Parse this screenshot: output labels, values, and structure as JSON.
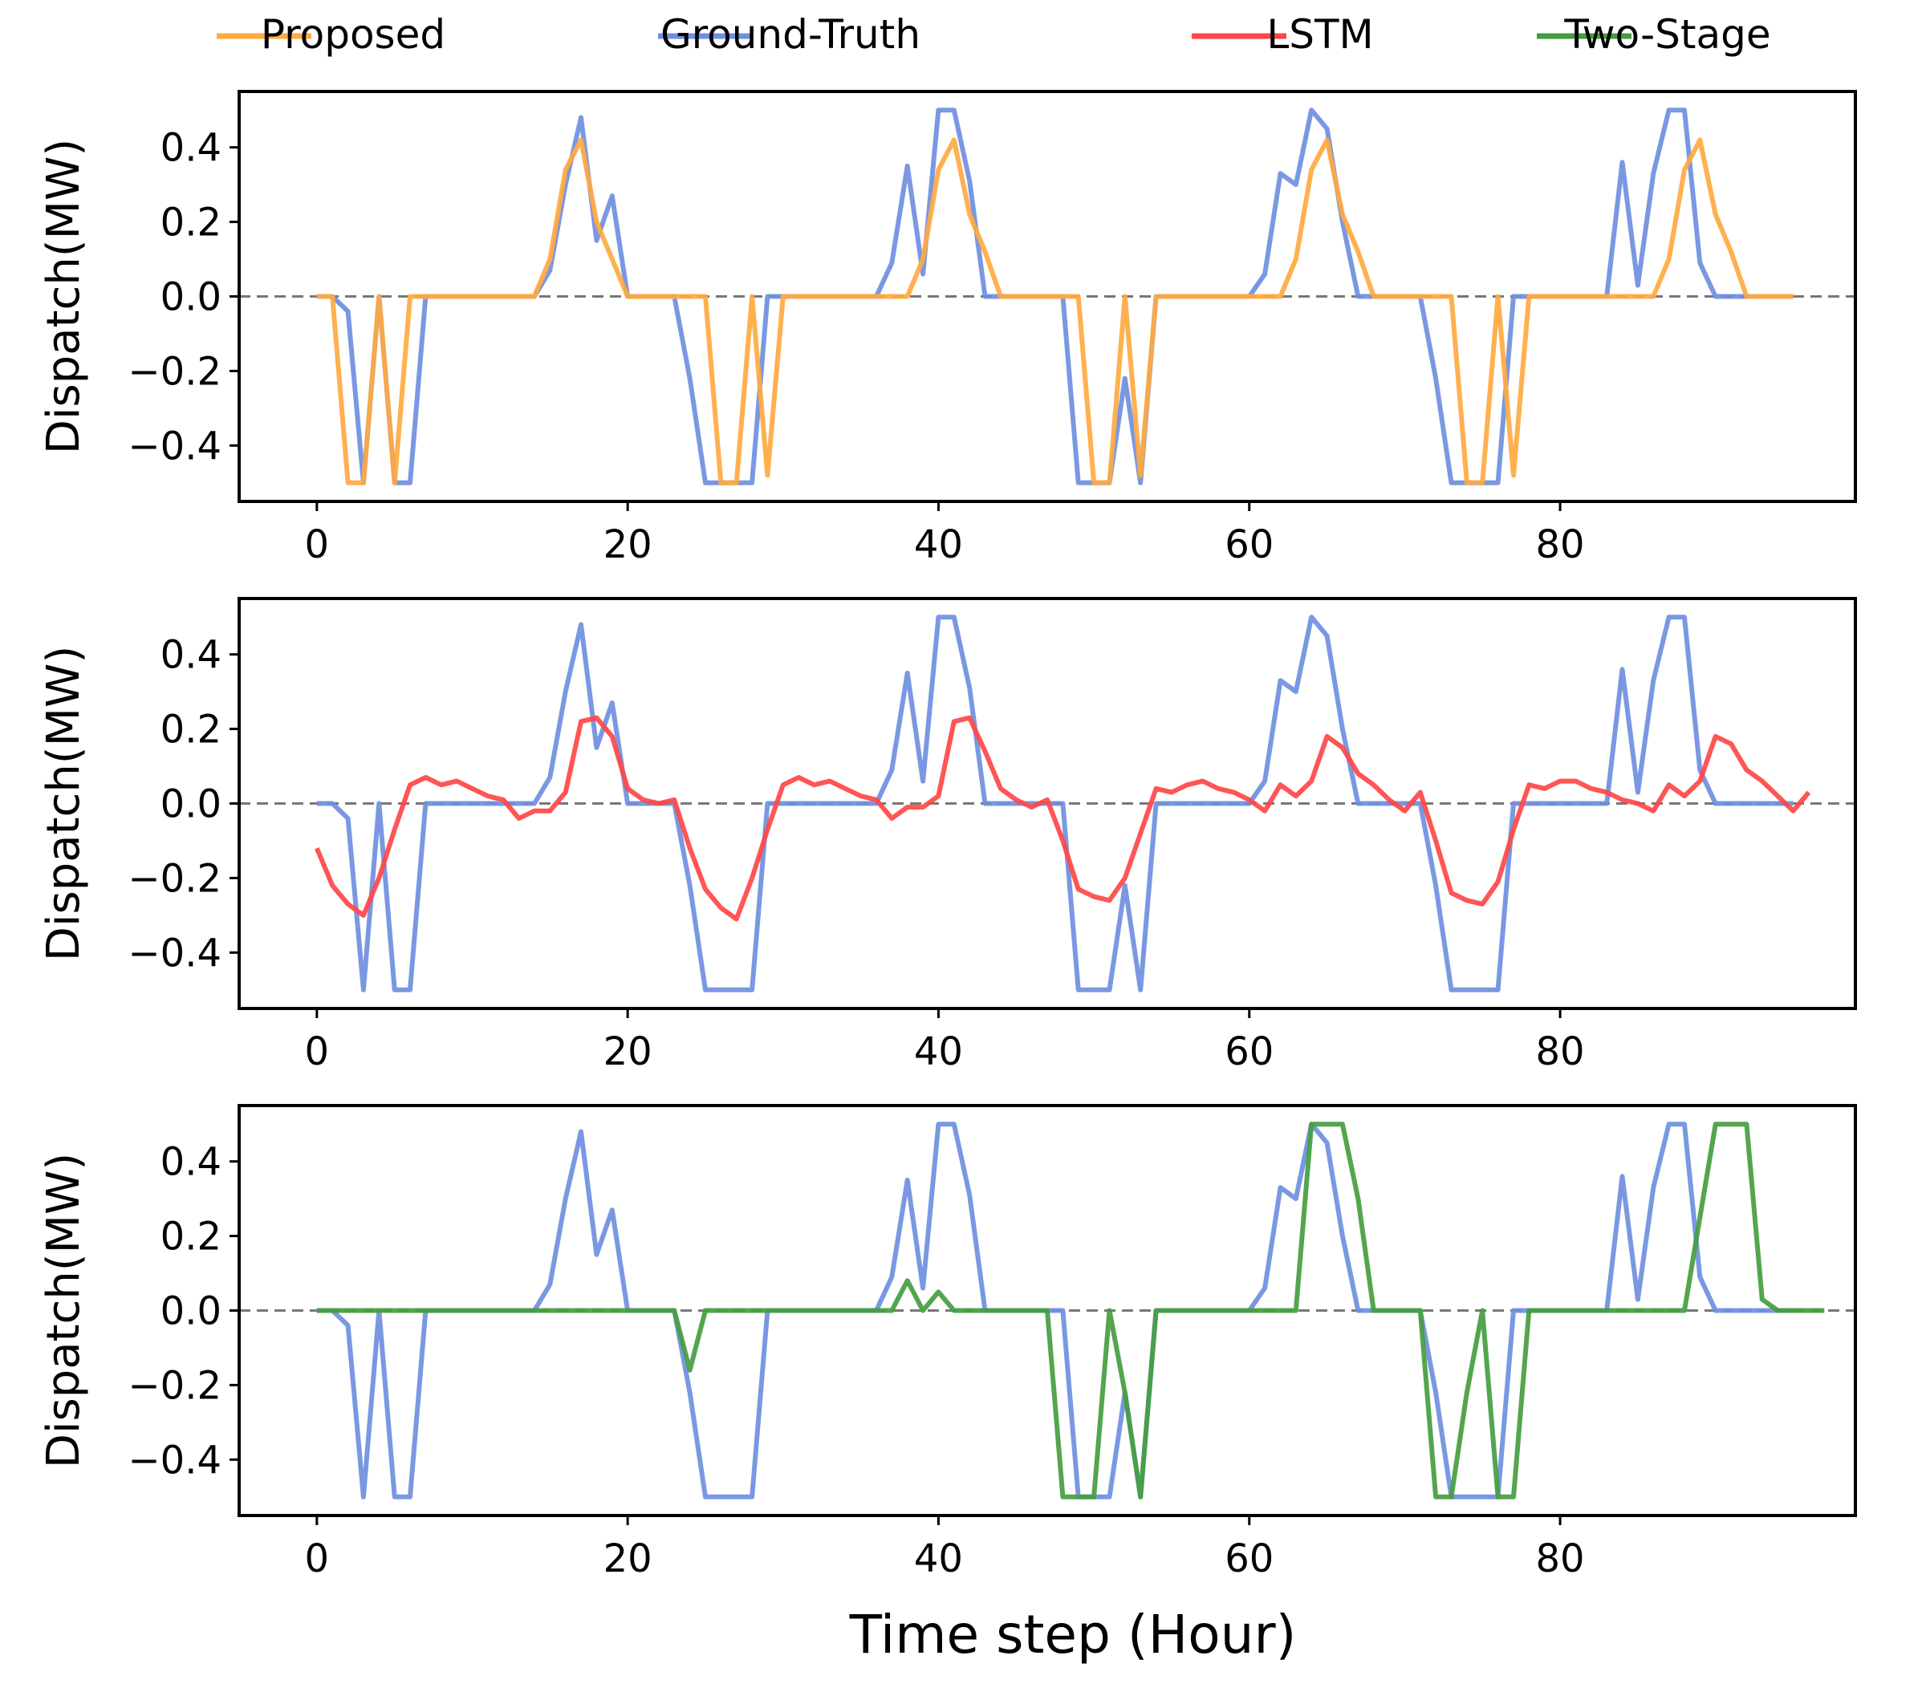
{
  "legend": [
    {
      "name": "Proposed",
      "color": "#FFA940"
    },
    {
      "name": "Ground-Truth",
      "color": "#6F8FE0"
    },
    {
      "name": "LSTM",
      "color": "#FF4646"
    },
    {
      "name": "Two-Stage",
      "color": "#449D3F"
    }
  ],
  "xlabel": "Time step (Hour)",
  "chart_data": [
    {
      "type": "line",
      "ylabel": "Dispatch(MW)",
      "xlim": [
        -5,
        99
      ],
      "ylim": [
        -0.55,
        0.55
      ],
      "xticks": [
        0,
        20,
        40,
        60,
        80
      ],
      "yticks": [
        -0.4,
        -0.2,
        0.0,
        0.2,
        0.4
      ],
      "ytick_labels": [
        "−0.4",
        "−0.2",
        "0.0",
        "0.2",
        "0.4"
      ],
      "reference_line": 0,
      "series": [
        {
          "name": "Ground-Truth",
          "color": "#6F8FE0",
          "x_start": 0,
          "values": [
            0,
            0,
            -0.04,
            -0.5,
            0,
            -0.5,
            -0.5,
            0,
            0,
            0,
            0,
            0,
            0,
            0,
            0,
            0.07,
            0.3,
            0.48,
            0.15,
            0.27,
            0,
            0,
            0,
            0,
            -0.22,
            -0.5,
            -0.5,
            -0.5,
            -0.5,
            0,
            0,
            0,
            0,
            0,
            0,
            0,
            0,
            0.09,
            0.35,
            0.06,
            0.5,
            0.5,
            0.31,
            0,
            0,
            0,
            0,
            0,
            0,
            -0.5,
            -0.5,
            -0.5,
            -0.22,
            -0.5,
            0,
            0,
            0,
            0,
            0,
            0,
            0,
            0.06,
            0.33,
            0.3,
            0.5,
            0.45,
            0.2,
            0,
            0,
            0,
            0,
            0,
            -0.22,
            -0.5,
            -0.5,
            -0.5,
            -0.5,
            0,
            0,
            0,
            0,
            0,
            0,
            0,
            0.36,
            0.03,
            0.33,
            0.5,
            0.5,
            0.09,
            0,
            0,
            0,
            0,
            0,
            0
          ]
        },
        {
          "name": "Proposed",
          "color": "#FFA940",
          "x_start": 0,
          "values": [
            0,
            0,
            -0.5,
            -0.5,
            0,
            -0.5,
            0,
            0,
            0,
            0,
            0,
            0,
            0,
            0,
            0,
            0.1,
            0.34,
            0.42,
            0.2,
            0.1,
            0,
            0,
            0,
            0,
            0,
            0,
            -0.5,
            -0.5,
            0,
            -0.48,
            0,
            0,
            0,
            0,
            0,
            0,
            0,
            0,
            0,
            0.1,
            0.34,
            0.42,
            0.22,
            0.12,
            0,
            0,
            0,
            0,
            0,
            0,
            -0.5,
            -0.5,
            0,
            -0.48,
            0,
            0,
            0,
            0,
            0,
            0,
            0,
            0,
            0,
            0.1,
            0.34,
            0.42,
            0.22,
            0.12,
            0,
            0,
            0,
            0,
            0,
            0,
            -0.5,
            -0.5,
            0,
            -0.48,
            0,
            0,
            0,
            0,
            0,
            0,
            0,
            0,
            0,
            0.1,
            0.34,
            0.42,
            0.22,
            0.12,
            0,
            0,
            0,
            0
          ]
        }
      ]
    },
    {
      "type": "line",
      "ylabel": "Dispatch(MW)",
      "xlim": [
        -5,
        99
      ],
      "ylim": [
        -0.55,
        0.55
      ],
      "xticks": [
        0,
        20,
        40,
        60,
        80
      ],
      "yticks": [
        -0.4,
        -0.2,
        0.0,
        0.2,
        0.4
      ],
      "ytick_labels": [
        "−0.4",
        "−0.2",
        "0.0",
        "0.2",
        "0.4"
      ],
      "reference_line": 0,
      "series": [
        {
          "name": "Ground-Truth",
          "color": "#6F8FE0",
          "x_start": 0,
          "values": [
            0,
            0,
            -0.04,
            -0.5,
            0,
            -0.5,
            -0.5,
            0,
            0,
            0,
            0,
            0,
            0,
            0,
            0,
            0.07,
            0.3,
            0.48,
            0.15,
            0.27,
            0,
            0,
            0,
            0,
            -0.22,
            -0.5,
            -0.5,
            -0.5,
            -0.5,
            0,
            0,
            0,
            0,
            0,
            0,
            0,
            0,
            0.09,
            0.35,
            0.06,
            0.5,
            0.5,
            0.31,
            0,
            0,
            0,
            0,
            0,
            0,
            -0.5,
            -0.5,
            -0.5,
            -0.22,
            -0.5,
            0,
            0,
            0,
            0,
            0,
            0,
            0,
            0.06,
            0.33,
            0.3,
            0.5,
            0.45,
            0.2,
            0,
            0,
            0,
            0,
            0,
            -0.22,
            -0.5,
            -0.5,
            -0.5,
            -0.5,
            0,
            0,
            0,
            0,
            0,
            0,
            0,
            0.36,
            0.03,
            0.33,
            0.5,
            0.5,
            0.09,
            0,
            0,
            0,
            0,
            0,
            0
          ]
        },
        {
          "name": "LSTM",
          "color": "#FF4646",
          "x_start": 0,
          "values": [
            -0.12,
            -0.22,
            -0.27,
            -0.3,
            -0.2,
            -0.07,
            0.05,
            0.07,
            0.05,
            0.06,
            0.04,
            0.02,
            0.01,
            -0.04,
            -0.02,
            -0.02,
            0.03,
            0.22,
            0.23,
            0.18,
            0.04,
            0.01,
            0,
            0.01,
            -0.12,
            -0.23,
            -0.28,
            -0.31,
            -0.2,
            -0.07,
            0.05,
            0.07,
            0.05,
            0.06,
            0.04,
            0.02,
            0.01,
            -0.04,
            -0.01,
            -0.01,
            0.02,
            0.22,
            0.23,
            0.14,
            0.04,
            0.01,
            -0.01,
            0.01,
            -0.1,
            -0.23,
            -0.25,
            -0.26,
            -0.2,
            -0.08,
            0.04,
            0.03,
            0.05,
            0.06,
            0.04,
            0.03,
            0.01,
            -0.02,
            0.05,
            0.02,
            0.06,
            0.18,
            0.15,
            0.08,
            0.05,
            0.01,
            -0.02,
            0.03,
            -0.1,
            -0.24,
            -0.26,
            -0.27,
            -0.21,
            -0.07,
            0.05,
            0.04,
            0.06,
            0.06,
            0.04,
            0.03,
            0.01,
            0,
            -0.02,
            0.05,
            0.02,
            0.06,
            0.18,
            0.16,
            0.09,
            0.06,
            0.02,
            -0.02,
            0.03
          ]
        }
      ]
    },
    {
      "type": "line",
      "ylabel": "Dispatch(MW)",
      "xlim": [
        -5,
        99
      ],
      "ylim": [
        -0.55,
        0.55
      ],
      "xticks": [
        0,
        20,
        40,
        60,
        80
      ],
      "yticks": [
        -0.4,
        -0.2,
        0.0,
        0.2,
        0.4
      ],
      "ytick_labels": [
        "−0.4",
        "−0.2",
        "0.0",
        "0.2",
        "0.4"
      ],
      "reference_line": 0,
      "series": [
        {
          "name": "Ground-Truth",
          "color": "#6F8FE0",
          "x_start": 0,
          "values": [
            0,
            0,
            -0.04,
            -0.5,
            0,
            -0.5,
            -0.5,
            0,
            0,
            0,
            0,
            0,
            0,
            0,
            0,
            0.07,
            0.3,
            0.48,
            0.15,
            0.27,
            0,
            0,
            0,
            0,
            -0.22,
            -0.5,
            -0.5,
            -0.5,
            -0.5,
            0,
            0,
            0,
            0,
            0,
            0,
            0,
            0,
            0.09,
            0.35,
            0.06,
            0.5,
            0.5,
            0.31,
            0,
            0,
            0,
            0,
            0,
            0,
            -0.5,
            -0.5,
            -0.5,
            -0.22,
            -0.5,
            0,
            0,
            0,
            0,
            0,
            0,
            0,
            0.06,
            0.33,
            0.3,
            0.5,
            0.45,
            0.2,
            0,
            0,
            0,
            0,
            0,
            -0.22,
            -0.5,
            -0.5,
            -0.5,
            -0.5,
            0,
            0,
            0,
            0,
            0,
            0,
            0,
            0.36,
            0.03,
            0.33,
            0.5,
            0.5,
            0.09,
            0,
            0,
            0,
            0,
            0,
            0
          ]
        },
        {
          "name": "Two-Stage",
          "color": "#449D3F",
          "x_start": 0,
          "values": [
            0,
            0,
            0,
            0,
            0,
            0,
            0,
            0,
            0,
            0,
            0,
            0,
            0,
            0,
            0,
            0,
            0,
            0,
            0,
            0,
            0,
            0,
            0,
            0,
            -0.16,
            0,
            0,
            0,
            0,
            0,
            0,
            0,
            0,
            0,
            0,
            0,
            0,
            0,
            0.08,
            0,
            0.05,
            0,
            0,
            0,
            0,
            0,
            0,
            0,
            -0.5,
            -0.5,
            -0.5,
            0,
            -0.22,
            -0.5,
            0,
            0,
            0,
            0,
            0,
            0,
            0,
            0,
            0,
            0,
            0.5,
            0.5,
            0.5,
            0.3,
            0,
            0,
            0,
            0,
            -0.5,
            -0.5,
            -0.22,
            0,
            -0.5,
            -0.5,
            0,
            0,
            0,
            0,
            0,
            0,
            0,
            0,
            0,
            0,
            0,
            0.25,
            0.5,
            0.5,
            0.5,
            0.03,
            0,
            0,
            0,
            0
          ]
        }
      ]
    }
  ]
}
